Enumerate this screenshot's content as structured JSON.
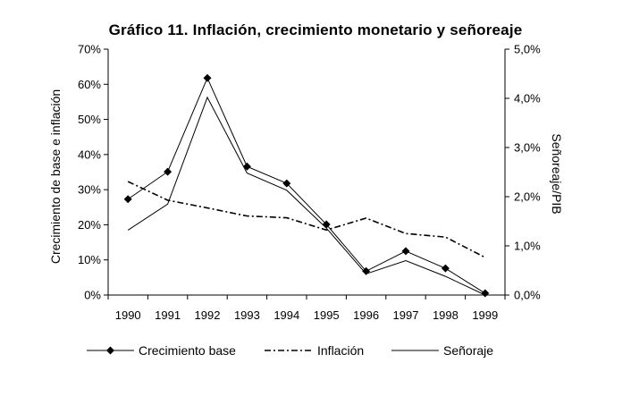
{
  "chart_data": {
    "type": "line",
    "title": "Gráfico 11. Inflación, crecimiento monetario y señoreaje",
    "xlabel": "",
    "ylabel": "Crecimiento de base e inflación",
    "y2label": "Señoreaje/PIB",
    "categories": [
      "1990",
      "1991",
      "1992",
      "1993",
      "1994",
      "1995",
      "1996",
      "1997",
      "1998",
      "1999"
    ],
    "ylim": [
      0,
      70
    ],
    "y2lim": [
      0,
      5
    ],
    "yticks": [
      "0%",
      "10%",
      "20%",
      "30%",
      "40%",
      "50%",
      "60%",
      "70%"
    ],
    "y2ticks": [
      "0,0%",
      "1,0%",
      "2,0%",
      "3,0%",
      "4,0%",
      "5,0%"
    ],
    "grid": false,
    "legend_position": "bottom",
    "series": [
      {
        "name": "Crecimiento base",
        "axis": "left",
        "style": "solid-diamond",
        "values": [
          27.3,
          35.1,
          61.8,
          36.6,
          31.8,
          20.1,
          6.8,
          12.5,
          7.6,
          0.5
        ]
      },
      {
        "name": "Inflación",
        "axis": "left",
        "style": "dash-dot",
        "values": [
          32.3,
          27.0,
          24.8,
          22.5,
          22.0,
          18.5,
          21.9,
          17.5,
          16.5,
          10.7
        ]
      },
      {
        "name": "Señoraje",
        "axis": "right",
        "style": "solid",
        "values": [
          1.32,
          1.85,
          4.02,
          2.48,
          2.13,
          1.36,
          0.43,
          0.7,
          0.38,
          0.0
        ]
      }
    ]
  }
}
